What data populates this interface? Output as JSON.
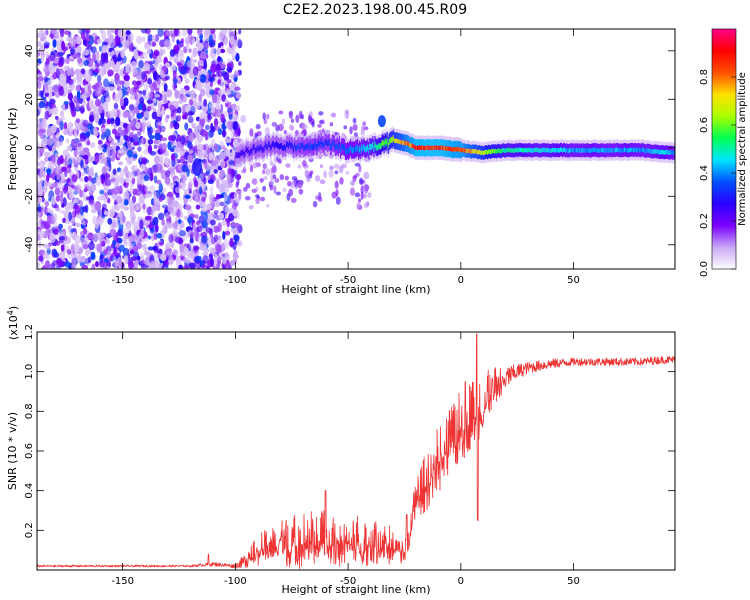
{
  "title": "C2E2.2023.198.00.45.R09",
  "chart_data": [
    {
      "type": "heatmap",
      "name": "spectrogram",
      "xlabel": "Height of straight line (km)",
      "ylabel": "Frequency (Hz)",
      "xlim": [
        -188,
        95
      ],
      "ylim": [
        -50,
        49
      ],
      "xticks": [
        -150,
        -100,
        -50,
        0,
        50
      ],
      "yticks": [
        -40,
        -20,
        0,
        20,
        40
      ],
      "colorbar": {
        "label": "Normalized spectral amplitude",
        "range": [
          0,
          1
        ],
        "ticks": [
          0.0,
          0.2,
          0.4,
          0.6,
          0.8
        ],
        "colors": [
          "#ffffff",
          "#c9a8f5",
          "#7a00ff",
          "#2a00ff",
          "#0050ff",
          "#00e5ff",
          "#00ff50",
          "#aaff00",
          "#ffe000",
          "#ff5000",
          "#ff0000",
          "#ff0088"
        ]
      },
      "features": {
        "noise_region_x": [
          -188,
          -98
        ],
        "signal_track": {
          "x": [
            -100,
            -90,
            -80,
            -70,
            -60,
            -50,
            -40,
            -35,
            -30,
            -25,
            -20,
            -10,
            0,
            10,
            20,
            30,
            40,
            50,
            60,
            70,
            80,
            90,
            95
          ],
          "freq": [
            -3,
            0,
            1,
            0,
            2,
            -1,
            0,
            1,
            3,
            2,
            0,
            0,
            -1,
            -2,
            -1,
            -1,
            -1,
            -1,
            -1,
            -1,
            -1,
            -2,
            -2
          ],
          "amplitude": [
            0.25,
            0.3,
            0.3,
            0.35,
            0.35,
            0.4,
            0.5,
            0.6,
            0.7,
            0.85,
            0.95,
            0.95,
            0.9,
            0.7,
            0.55,
            0.5,
            0.5,
            0.45,
            0.45,
            0.45,
            0.45,
            0.5,
            0.4
          ]
        },
        "spur": {
          "x": -35,
          "freq": 11,
          "amplitude": 0.35
        },
        "blob": {
          "x": -117,
          "freq": -8,
          "amplitude": 0.3
        }
      }
    },
    {
      "type": "line",
      "name": "snr",
      "xlabel": "Height of straight line (km)",
      "ylabel": "SNR (10 * v/v)",
      "multiplier_label": "(x10",
      "multiplier_exponent": "4",
      "xlim": [
        -188,
        95
      ],
      "ylim": [
        0,
        1.2
      ],
      "xticks": [
        -150,
        -100,
        -50,
        0,
        50
      ],
      "yticks": [
        0.2,
        0.4,
        0.6,
        0.8,
        1.0,
        1.2
      ],
      "color": "#ee3333",
      "envelope": {
        "x": [
          -188,
          -120,
          -110,
          -100,
          -95,
          -90,
          -80,
          -70,
          -60,
          -50,
          -40,
          -30,
          -25,
          -22,
          -20,
          -15,
          -10,
          -5,
          0,
          5,
          7,
          10,
          15,
          20,
          25,
          30,
          40,
          50,
          60,
          70,
          80,
          90,
          95
        ],
        "y": [
          0.02,
          0.02,
          0.03,
          0.02,
          0.05,
          0.1,
          0.13,
          0.15,
          0.15,
          0.15,
          0.14,
          0.12,
          0.08,
          0.22,
          0.35,
          0.45,
          0.55,
          0.62,
          0.72,
          0.78,
          0.8,
          0.85,
          0.92,
          0.97,
          1.0,
          1.02,
          1.04,
          1.05,
          1.05,
          1.05,
          1.05,
          1.06,
          1.06
        ]
      },
      "noise_amplitude": {
        "x": [
          -188,
          -120,
          -110,
          -100,
          -95,
          -90,
          -80,
          -70,
          -60,
          -50,
          -40,
          -30,
          -25,
          -22,
          -20,
          -15,
          -10,
          -5,
          0,
          5,
          10,
          15,
          20,
          25,
          30,
          40,
          50,
          60,
          70,
          80,
          90,
          95
        ],
        "y": [
          0.005,
          0.005,
          0.01,
          0.01,
          0.04,
          0.08,
          0.12,
          0.15,
          0.15,
          0.14,
          0.12,
          0.1,
          0.06,
          0.08,
          0.12,
          0.16,
          0.18,
          0.2,
          0.2,
          0.18,
          0.15,
          0.1,
          0.06,
          0.04,
          0.03,
          0.025,
          0.02,
          0.02,
          0.02,
          0.02,
          0.02,
          0.02
        ]
      },
      "peaks": [
        {
          "x": 7,
          "y": 1.19
        },
        {
          "x": 7.5,
          "y": 0.25
        },
        {
          "x": 2,
          "y": 0.95
        },
        {
          "x": -112,
          "y": 0.08
        },
        {
          "x": -60,
          "y": 0.4
        },
        {
          "x": -24,
          "y": 0.28
        }
      ]
    }
  ]
}
